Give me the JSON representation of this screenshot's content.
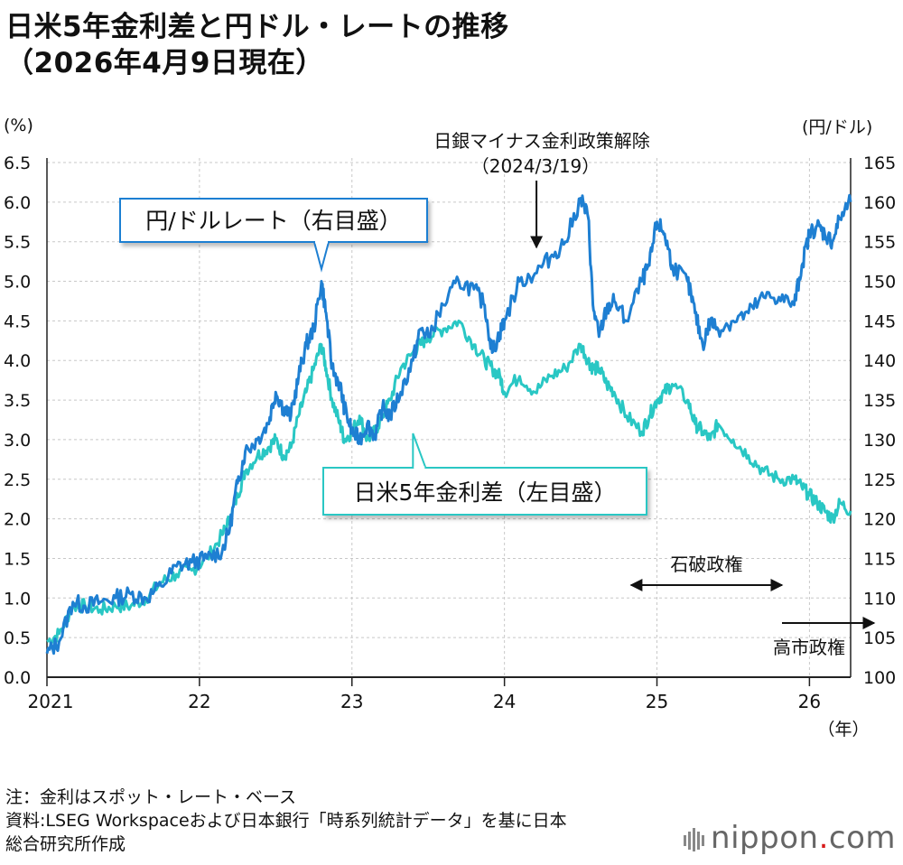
{
  "title_line1": "日米5年金利差と円ドル・レートの推移",
  "title_line2": "（2026年4月9日現在）",
  "left_unit": "(%)",
  "right_unit": "(円/ドル)",
  "x_unit": "（年）",
  "notes": {
    "line1": "注：金利はスポット・レート・ベース",
    "line2": "資料:LSEG Workspaceおよび日本銀行「時系列統計データ」を基に日本",
    "line3": "総合研究所作成"
  },
  "logo": {
    "name": "nippon",
    "dot": ".",
    "tld": "com"
  },
  "colors": {
    "yen": "#1e7fd2",
    "spread": "#29c7c4",
    "axis": "#222222",
    "grid": "#c8c8c8"
  },
  "chart_data": {
    "type": "line",
    "x_ticks": [
      "2021",
      "22",
      "23",
      "24",
      "25",
      "26"
    ],
    "x_range": [
      2021.0,
      2026.27
    ],
    "y_left": {
      "ticks": [
        "0.0",
        "0.5",
        "1.0",
        "1.5",
        "2.0",
        "2.5",
        "3.0",
        "3.5",
        "4.0",
        "4.5",
        "5.0",
        "5.5",
        "6.0",
        "6.5"
      ],
      "range": [
        0,
        6.5
      ]
    },
    "y_right": {
      "ticks": [
        "100",
        "105",
        "110",
        "115",
        "120",
        "125",
        "130",
        "135",
        "140",
        "145",
        "150",
        "155",
        "160",
        "165"
      ],
      "range": [
        100,
        165
      ]
    },
    "series": [
      {
        "name": "円/ドルレート（右目盛）",
        "axis": "right",
        "x": [
          2021.0,
          2021.08,
          2021.17,
          2021.25,
          2021.35,
          2021.45,
          2021.55,
          2021.65,
          2021.75,
          2021.85,
          2021.95,
          2022.05,
          2022.15,
          2022.2,
          2022.25,
          2022.3,
          2022.38,
          2022.45,
          2022.5,
          2022.55,
          2022.6,
          2022.65,
          2022.7,
          2022.75,
          2022.8,
          2022.83,
          2022.87,
          2022.92,
          2022.95,
          2023.0,
          2023.05,
          2023.1,
          2023.15,
          2023.2,
          2023.25,
          2023.32,
          2023.4,
          2023.45,
          2023.5,
          2023.6,
          2023.7,
          2023.8,
          2023.87,
          2023.92,
          2023.97,
          2024.0,
          2024.1,
          2024.2,
          2024.3,
          2024.4,
          2024.5,
          2024.55,
          2024.58,
          2024.62,
          2024.67,
          2024.72,
          2024.8,
          2024.9,
          2024.95,
          2025.0,
          2025.05,
          2025.1,
          2025.2,
          2025.25,
          2025.3,
          2025.35,
          2025.4,
          2025.5,
          2025.6,
          2025.7,
          2025.8,
          2025.9,
          2025.95,
          2026.0,
          2026.05,
          2026.1,
          2026.15,
          2026.2,
          2026.27
        ],
        "values": [
          103,
          104.5,
          109.5,
          109,
          109.5,
          110,
          110.5,
          110,
          111.5,
          114,
          114.5,
          115,
          116,
          119,
          124.5,
          128.5,
          130,
          132,
          136,
          134,
          133,
          138,
          142,
          144,
          150,
          146,
          139,
          137,
          134,
          131,
          130,
          132,
          130.5,
          134,
          133,
          136,
          140,
          144,
          143,
          147,
          150,
          149,
          147,
          141,
          143.5,
          145,
          150,
          151,
          153,
          155,
          160.5,
          158,
          147,
          143,
          146.5,
          147.5,
          145,
          150,
          152,
          157.5,
          156,
          152,
          150,
          146,
          142,
          145,
          144,
          145,
          146,
          148,
          148,
          147,
          152,
          156,
          157,
          156,
          155,
          158,
          160
        ]
      },
      {
        "name": "日米5年金利差（左目盛）",
        "axis": "left",
        "x": [
          2021.0,
          2021.08,
          2021.17,
          2021.25,
          2021.35,
          2021.45,
          2021.55,
          2021.65,
          2021.75,
          2021.85,
          2021.95,
          2022.05,
          2022.15,
          2022.2,
          2022.25,
          2022.3,
          2022.38,
          2022.45,
          2022.5,
          2022.55,
          2022.6,
          2022.65,
          2022.7,
          2022.75,
          2022.8,
          2022.83,
          2022.87,
          2022.92,
          2022.95,
          2023.0,
          2023.05,
          2023.1,
          2023.15,
          2023.2,
          2023.25,
          2023.32,
          2023.4,
          2023.45,
          2023.5,
          2023.6,
          2023.7,
          2023.8,
          2023.87,
          2023.92,
          2023.97,
          2024.0,
          2024.1,
          2024.2,
          2024.3,
          2024.4,
          2024.5,
          2024.55,
          2024.58,
          2024.62,
          2024.67,
          2024.72,
          2024.8,
          2024.9,
          2024.95,
          2025.0,
          2025.05,
          2025.1,
          2025.2,
          2025.25,
          2025.3,
          2025.35,
          2025.4,
          2025.5,
          2025.6,
          2025.7,
          2025.8,
          2025.9,
          2025.95,
          2026.0,
          2026.05,
          2026.1,
          2026.15,
          2026.2,
          2026.27
        ],
        "values": [
          0.45,
          0.55,
          0.9,
          0.9,
          0.85,
          0.9,
          0.9,
          1.0,
          1.2,
          1.3,
          1.35,
          1.5,
          1.8,
          2.0,
          2.3,
          2.6,
          2.8,
          2.9,
          3.0,
          2.8,
          2.9,
          3.3,
          3.6,
          3.9,
          4.2,
          3.9,
          3.5,
          3.2,
          3.0,
          3.1,
          3.3,
          3.0,
          3.1,
          3.3,
          3.5,
          3.9,
          4.1,
          4.2,
          4.3,
          4.4,
          4.5,
          4.2,
          4.0,
          3.9,
          3.8,
          3.6,
          3.8,
          3.6,
          3.8,
          3.9,
          4.2,
          4.0,
          3.9,
          3.9,
          3.7,
          3.6,
          3.3,
          3.1,
          3.3,
          3.5,
          3.6,
          3.7,
          3.5,
          3.2,
          3.1,
          3.0,
          3.2,
          3.0,
          2.8,
          2.6,
          2.5,
          2.5,
          2.4,
          2.3,
          2.2,
          2.1,
          2.0,
          2.2,
          2.1
        ]
      }
    ],
    "annotations": [
      {
        "id": "boj",
        "line1": "日銀マイナス金利政策解除",
        "line2": "（2024/3/19）",
        "x": 2024.21
      },
      {
        "id": "ishiba",
        "text": "石破政権",
        "x_start": 2024.83,
        "x_end": 2025.82
      },
      {
        "id": "takaichi",
        "text": "高市政権",
        "x_start": 2025.82
      },
      {
        "id": "yen_label",
        "text": "円/ドルレート（右目盛）",
        "anchor_x": 2022.8
      },
      {
        "id": "spread_label",
        "text": "日米5年金利差（左目盛）",
        "anchor_x": 2023.4
      }
    ]
  }
}
